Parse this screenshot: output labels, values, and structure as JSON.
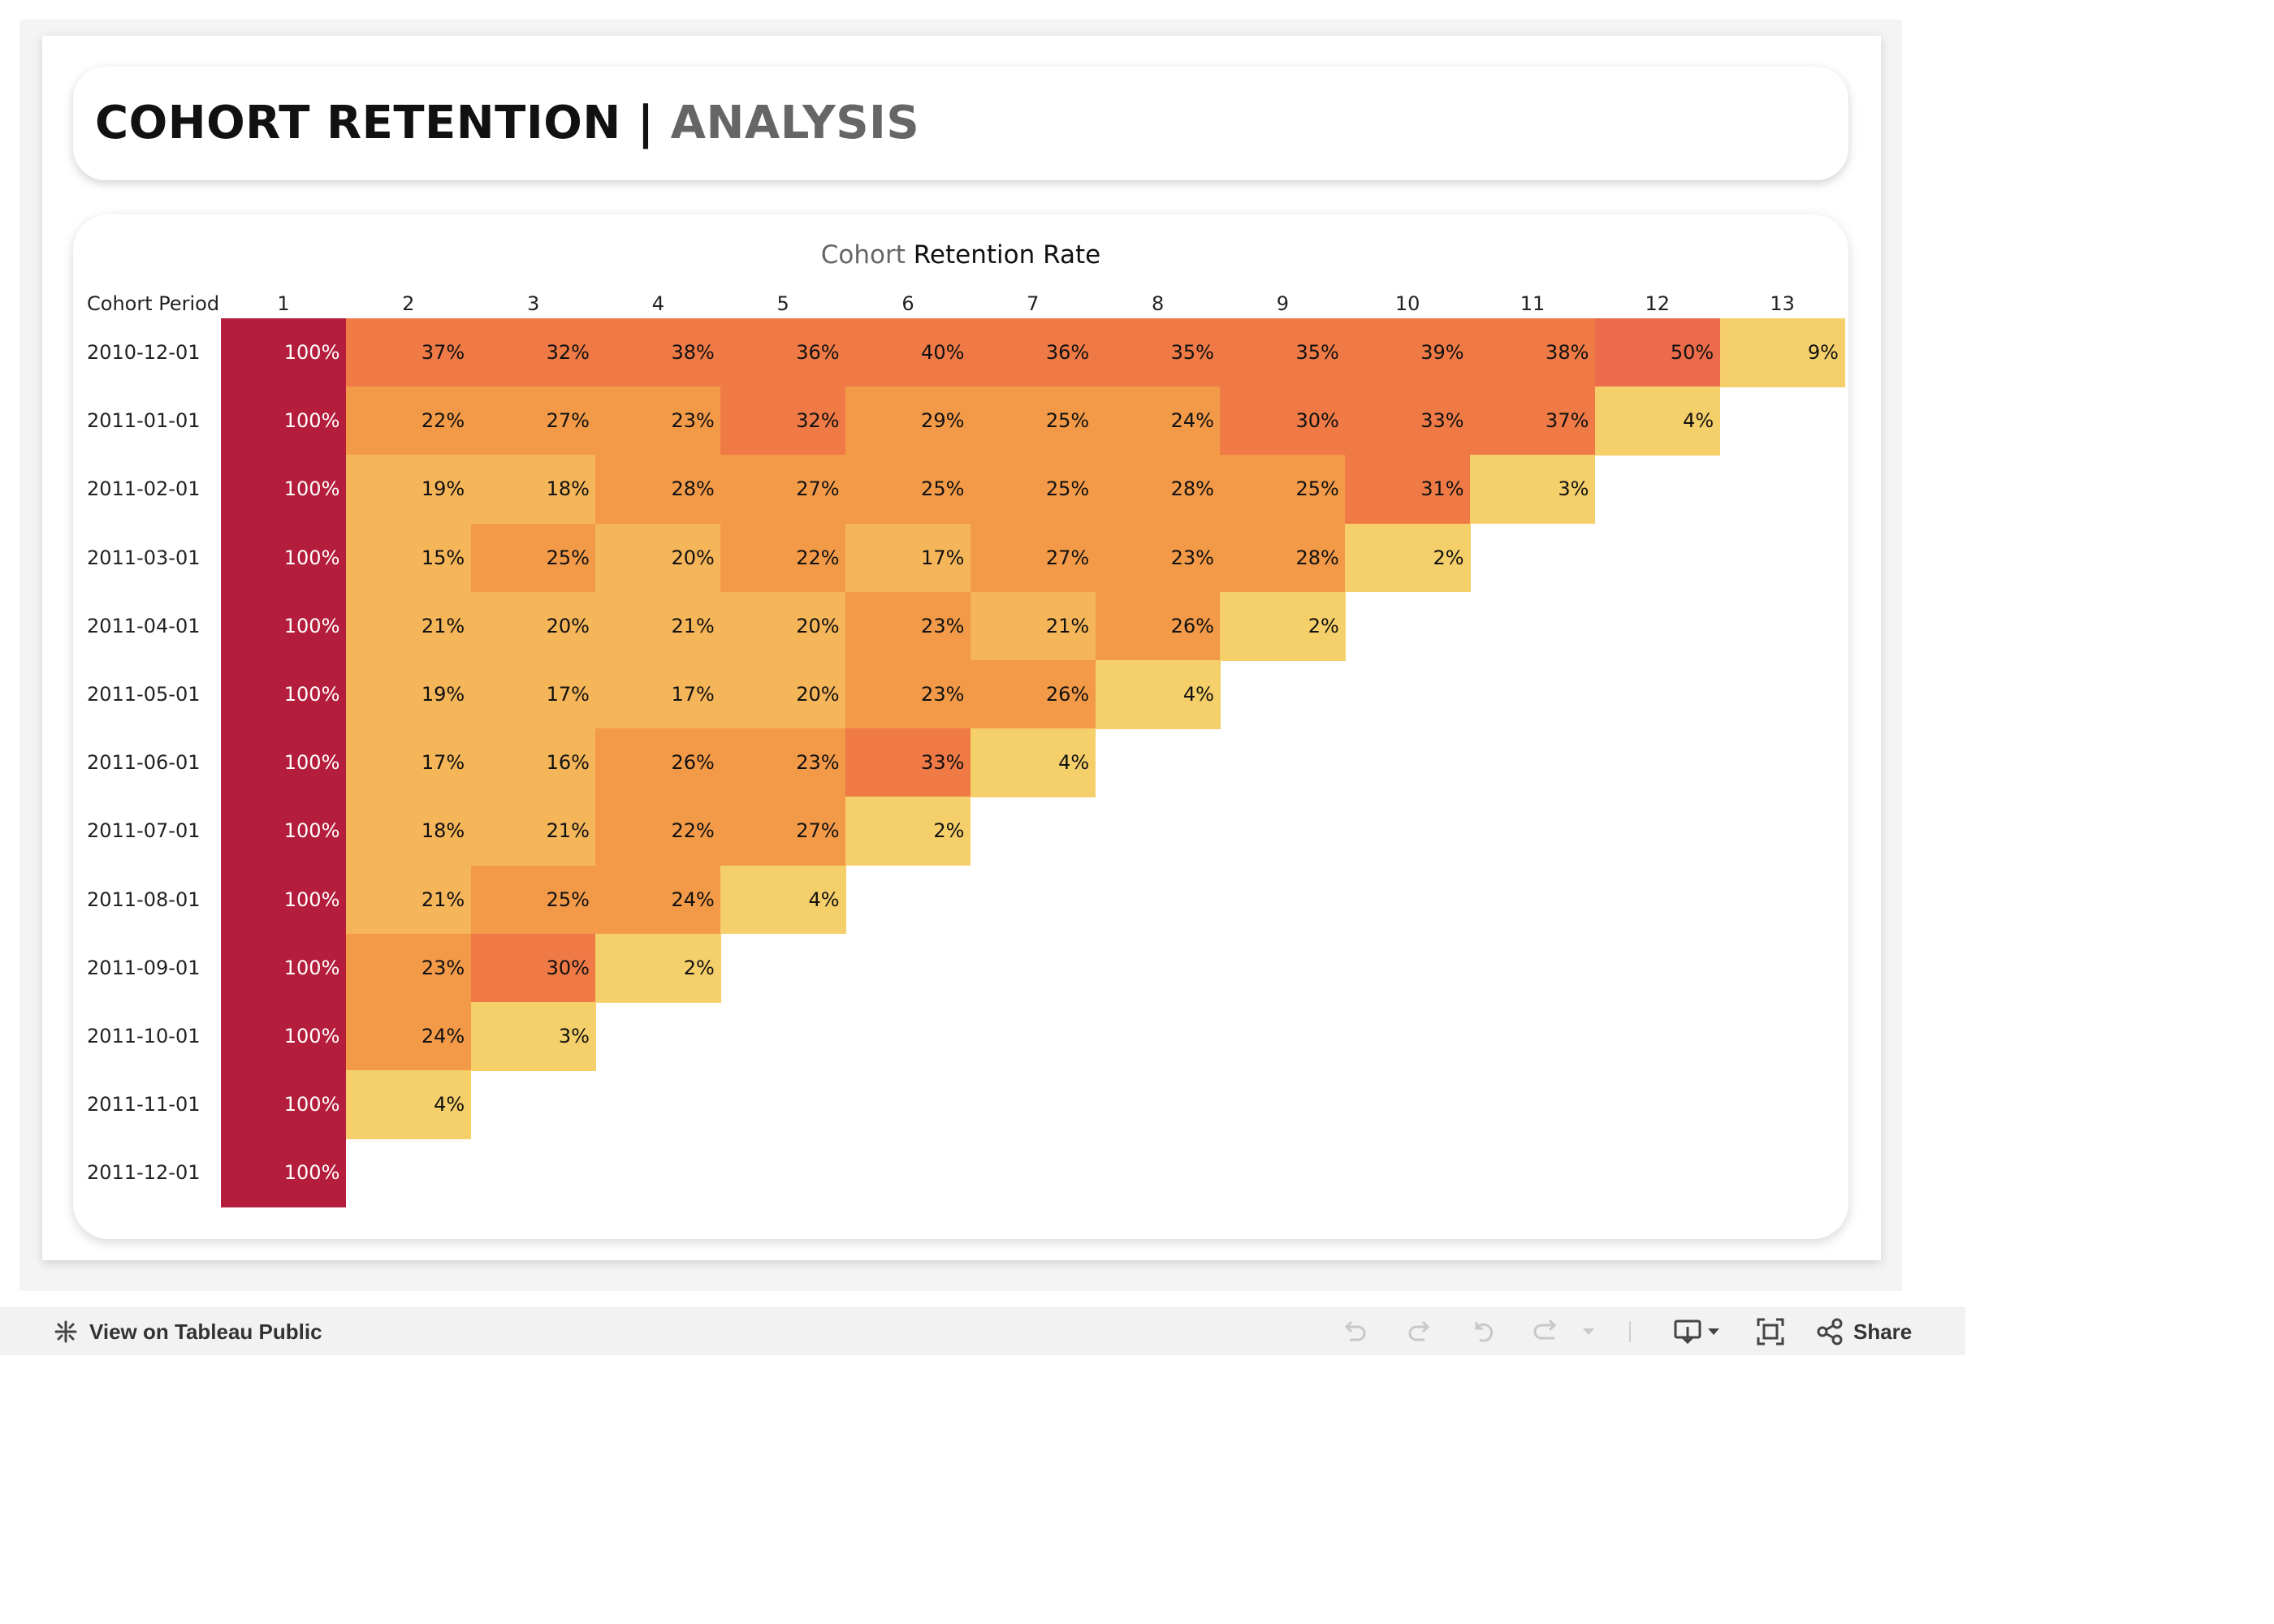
{
  "header": {
    "title_main": "COHORT RETENTION",
    "title_separator": "|",
    "title_sub": "ANALYSIS"
  },
  "chart": {
    "title_part1": "Cohort",
    "title_part2": "Retention Rate",
    "row_header": "Cohort Period"
  },
  "colors": {
    "dark": "#b51d3c",
    "scale": [
      "#f5cf6a",
      "#f5b559",
      "#f39a48",
      "#ef7a46",
      "#ec6b4a"
    ]
  },
  "chart_data": {
    "type": "heatmap",
    "title": "Cohort Retention Rate",
    "xlabel": "",
    "ylabel": "Cohort Period",
    "columns": [
      "1",
      "2",
      "3",
      "4",
      "5",
      "6",
      "7",
      "8",
      "9",
      "10",
      "11",
      "12",
      "13"
    ],
    "rows": [
      "2010-12-01",
      "2011-01-01",
      "2011-02-01",
      "2011-03-01",
      "2011-04-01",
      "2011-05-01",
      "2011-06-01",
      "2011-07-01",
      "2011-08-01",
      "2011-09-01",
      "2011-10-01",
      "2011-11-01",
      "2011-12-01"
    ],
    "values": [
      [
        100,
        37,
        32,
        38,
        36,
        40,
        36,
        35,
        35,
        39,
        38,
        50,
        9
      ],
      [
        100,
        22,
        27,
        23,
        32,
        29,
        25,
        24,
        30,
        33,
        37,
        4
      ],
      [
        100,
        19,
        18,
        28,
        27,
        25,
        25,
        28,
        25,
        31,
        3
      ],
      [
        100,
        15,
        25,
        20,
        22,
        17,
        27,
        23,
        28,
        2
      ],
      [
        100,
        21,
        20,
        21,
        20,
        23,
        21,
        26,
        2
      ],
      [
        100,
        19,
        17,
        17,
        20,
        23,
        26,
        4
      ],
      [
        100,
        17,
        16,
        26,
        23,
        33,
        4
      ],
      [
        100,
        18,
        21,
        22,
        27,
        2
      ],
      [
        100,
        21,
        25,
        24,
        4
      ],
      [
        100,
        23,
        30,
        2
      ],
      [
        100,
        24,
        3
      ],
      [
        100,
        4
      ],
      [
        100
      ]
    ],
    "unit": "%"
  },
  "toolbar": {
    "view_label": "View on Tableau Public",
    "share_label": "Share",
    "icons": [
      "tableau-logo-icon",
      "undo-icon",
      "redo-icon",
      "revert-icon",
      "refresh-icon",
      "dropdown-arrow-icon",
      "download-icon",
      "fullscreen-icon",
      "share-icon"
    ]
  }
}
